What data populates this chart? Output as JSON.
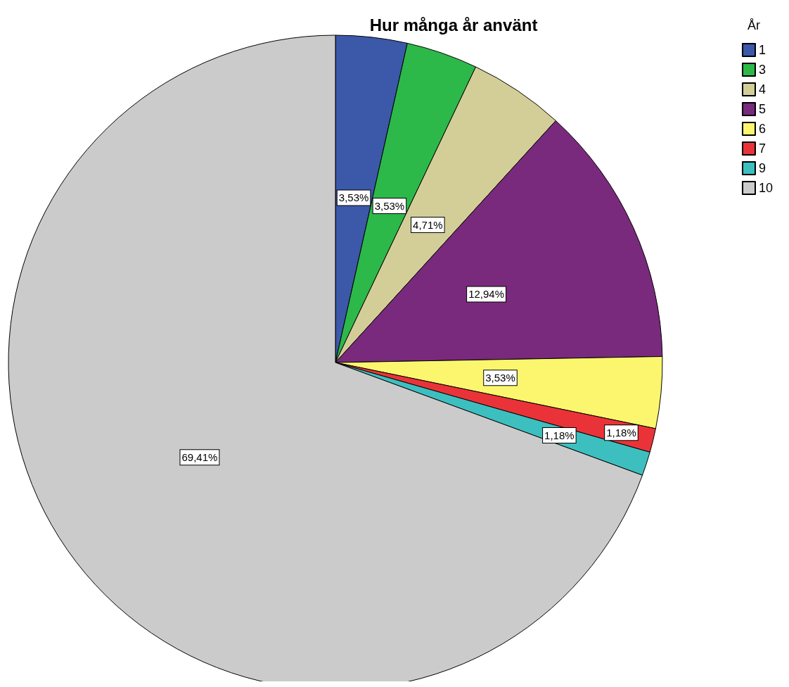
{
  "chart_data": {
    "type": "pie",
    "title": "Hur många år använt",
    "legend_title": "År",
    "legend": "top right",
    "categories": [
      "1",
      "3",
      "4",
      "5",
      "6",
      "7",
      "9",
      "10"
    ],
    "values": [
      3.53,
      3.53,
      4.71,
      12.94,
      3.53,
      1.18,
      1.18,
      69.41
    ],
    "value_labels": [
      "3,53%",
      "3,53%",
      "4,71%",
      "12,94%",
      "3,53%",
      "1,18%",
      "1,18%",
      "69,41%"
    ],
    "colors": [
      "#3c58a8",
      "#2db84a",
      "#d3ce97",
      "#792a7c",
      "#fbf66e",
      "#ea3338",
      "#3dbfbf",
      "#cbcbcb"
    ]
  }
}
